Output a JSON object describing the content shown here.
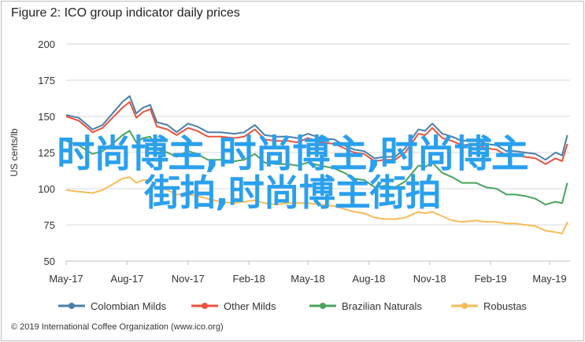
{
  "title": "Figure 2: ICO group indicator daily prices",
  "footer": "© 2019 International Coffee Organization (www.ico.org)",
  "overlay": {
    "line1": "时尚博主,时尚博主,时尚博主",
    "line2": "街拍,时尚博主街拍"
  },
  "chart_data": {
    "type": "line",
    "ylabel": "US cents/lb",
    "ylim": [
      50,
      200
    ],
    "yticks": [
      50,
      75,
      100,
      125,
      150,
      175,
      200
    ],
    "xlim": [
      "2017-05-01",
      "2019-06-01"
    ],
    "xticks": [
      {
        "date": "2017-05-01",
        "label": "May-17"
      },
      {
        "date": "2017-08-01",
        "label": "Aug-17"
      },
      {
        "date": "2017-11-01",
        "label": "Nov-17"
      },
      {
        "date": "2018-02-01",
        "label": "Feb-18"
      },
      {
        "date": "2018-05-01",
        "label": "May-18"
      },
      {
        "date": "2018-08-01",
        "label": "Aug-18"
      },
      {
        "date": "2018-11-01",
        "label": "Nov-18"
      },
      {
        "date": "2019-02-01",
        "label": "Feb-19"
      },
      {
        "date": "2019-05-01",
        "label": "May-19"
      }
    ],
    "grid": "horizontal",
    "legend_position": "bottom",
    "series": [
      {
        "name": "Colombian Milds",
        "color": "#4a7fa8",
        "points": [
          [
            "2017-05-01",
            151
          ],
          [
            "2017-05-20",
            149
          ],
          [
            "2017-06-10",
            141
          ],
          [
            "2017-06-25",
            144
          ],
          [
            "2017-07-10",
            152
          ],
          [
            "2017-07-25",
            160
          ],
          [
            "2017-08-05",
            164
          ],
          [
            "2017-08-15",
            152
          ],
          [
            "2017-08-25",
            156
          ],
          [
            "2017-09-05",
            158
          ],
          [
            "2017-09-15",
            146
          ],
          [
            "2017-10-01",
            144
          ],
          [
            "2017-10-15",
            139
          ],
          [
            "2017-11-01",
            145
          ],
          [
            "2017-11-15",
            143
          ],
          [
            "2017-12-01",
            139
          ],
          [
            "2017-12-20",
            139
          ],
          [
            "2018-01-10",
            138
          ],
          [
            "2018-01-25",
            139
          ],
          [
            "2018-02-10",
            144
          ],
          [
            "2018-02-25",
            137
          ],
          [
            "2018-03-15",
            136
          ],
          [
            "2018-04-01",
            136
          ],
          [
            "2018-04-15",
            135
          ],
          [
            "2018-05-01",
            138
          ],
          [
            "2018-05-20",
            135
          ],
          [
            "2018-06-10",
            134
          ],
          [
            "2018-06-25",
            130
          ],
          [
            "2018-07-10",
            127
          ],
          [
            "2018-07-25",
            126
          ],
          [
            "2018-08-10",
            121
          ],
          [
            "2018-08-25",
            122
          ],
          [
            "2018-09-10",
            122
          ],
          [
            "2018-09-25",
            128
          ],
          [
            "2018-10-15",
            141
          ],
          [
            "2018-10-25",
            140
          ],
          [
            "2018-11-05",
            145
          ],
          [
            "2018-11-20",
            138
          ],
          [
            "2018-12-05",
            136
          ],
          [
            "2018-12-20",
            133
          ],
          [
            "2019-01-10",
            134
          ],
          [
            "2019-01-25",
            131
          ],
          [
            "2019-02-10",
            130
          ],
          [
            "2019-02-25",
            126
          ],
          [
            "2019-03-10",
            126
          ],
          [
            "2019-03-25",
            125
          ],
          [
            "2019-04-10",
            124
          ],
          [
            "2019-04-25",
            120
          ],
          [
            "2019-05-10",
            125
          ],
          [
            "2019-05-20",
            123
          ],
          [
            "2019-05-28",
            137
          ]
        ]
      },
      {
        "name": "Other Milds",
        "color": "#e8533f",
        "points": [
          [
            "2017-05-01",
            150
          ],
          [
            "2017-05-20",
            147
          ],
          [
            "2017-06-10",
            139
          ],
          [
            "2017-06-25",
            142
          ],
          [
            "2017-07-10",
            149
          ],
          [
            "2017-07-25",
            156
          ],
          [
            "2017-08-05",
            160
          ],
          [
            "2017-08-15",
            149
          ],
          [
            "2017-08-25",
            153
          ],
          [
            "2017-09-05",
            155
          ],
          [
            "2017-09-15",
            143
          ],
          [
            "2017-10-01",
            141
          ],
          [
            "2017-10-15",
            137
          ],
          [
            "2017-11-01",
            142
          ],
          [
            "2017-11-15",
            140
          ],
          [
            "2017-12-01",
            136
          ],
          [
            "2017-12-20",
            136
          ],
          [
            "2018-01-10",
            135
          ],
          [
            "2018-01-25",
            136
          ],
          [
            "2018-02-10",
            141
          ],
          [
            "2018-02-25",
            134
          ],
          [
            "2018-03-15",
            133
          ],
          [
            "2018-04-01",
            133
          ],
          [
            "2018-04-15",
            132
          ],
          [
            "2018-05-01",
            135
          ],
          [
            "2018-05-20",
            132
          ],
          [
            "2018-06-10",
            131
          ],
          [
            "2018-06-25",
            128
          ],
          [
            "2018-07-10",
            125
          ],
          [
            "2018-07-25",
            124
          ],
          [
            "2018-08-10",
            119
          ],
          [
            "2018-08-25",
            120
          ],
          [
            "2018-09-10",
            120
          ],
          [
            "2018-09-25",
            125
          ],
          [
            "2018-10-15",
            138
          ],
          [
            "2018-10-25",
            137
          ],
          [
            "2018-11-05",
            142
          ],
          [
            "2018-11-20",
            135
          ],
          [
            "2018-12-05",
            133
          ],
          [
            "2018-12-20",
            130
          ],
          [
            "2019-01-10",
            131
          ],
          [
            "2019-01-25",
            128
          ],
          [
            "2019-02-10",
            127
          ],
          [
            "2019-02-25",
            123
          ],
          [
            "2019-03-10",
            123
          ],
          [
            "2019-03-25",
            122
          ],
          [
            "2019-04-10",
            121
          ],
          [
            "2019-04-25",
            117
          ],
          [
            "2019-05-10",
            121
          ],
          [
            "2019-05-20",
            119
          ],
          [
            "2019-05-28",
            131
          ]
        ]
      },
      {
        "name": "Brazilian Naturals",
        "color": "#4aa35c",
        "points": [
          [
            "2017-05-01",
            133
          ],
          [
            "2017-05-20",
            130
          ],
          [
            "2017-06-10",
            124
          ],
          [
            "2017-06-25",
            126
          ],
          [
            "2017-07-10",
            131
          ],
          [
            "2017-07-25",
            137
          ],
          [
            "2017-08-05",
            140
          ],
          [
            "2017-08-15",
            132
          ],
          [
            "2017-08-25",
            135
          ],
          [
            "2017-09-05",
            136
          ],
          [
            "2017-09-15",
            127
          ],
          [
            "2017-10-01",
            125
          ],
          [
            "2017-10-15",
            122
          ],
          [
            "2017-11-01",
            126
          ],
          [
            "2017-11-15",
            124
          ],
          [
            "2017-12-01",
            120
          ],
          [
            "2017-12-20",
            120
          ],
          [
            "2018-01-10",
            119
          ],
          [
            "2018-01-25",
            120
          ],
          [
            "2018-02-10",
            124
          ],
          [
            "2018-02-25",
            118
          ],
          [
            "2018-03-15",
            117
          ],
          [
            "2018-04-01",
            117
          ],
          [
            "2018-04-15",
            116
          ],
          [
            "2018-05-01",
            118
          ],
          [
            "2018-05-20",
            116
          ],
          [
            "2018-06-10",
            114
          ],
          [
            "2018-06-25",
            111
          ],
          [
            "2018-07-10",
            107
          ],
          [
            "2018-07-25",
            106
          ],
          [
            "2018-08-10",
            101
          ],
          [
            "2018-08-25",
            102
          ],
          [
            "2018-09-10",
            101
          ],
          [
            "2018-09-25",
            105
          ],
          [
            "2018-10-15",
            116
          ],
          [
            "2018-10-25",
            115
          ],
          [
            "2018-11-05",
            118
          ],
          [
            "2018-11-20",
            111
          ],
          [
            "2018-12-05",
            108
          ],
          [
            "2018-12-20",
            104
          ],
          [
            "2019-01-10",
            104
          ],
          [
            "2019-01-25",
            101
          ],
          [
            "2019-02-10",
            100
          ],
          [
            "2019-02-25",
            96
          ],
          [
            "2019-03-10",
            96
          ],
          [
            "2019-03-25",
            95
          ],
          [
            "2019-04-10",
            93
          ],
          [
            "2019-04-25",
            89
          ],
          [
            "2019-05-10",
            91
          ],
          [
            "2019-05-20",
            90
          ],
          [
            "2019-05-28",
            104
          ]
        ]
      },
      {
        "name": "Robustas",
        "color": "#f7bb5a",
        "points": [
          [
            "2017-05-01",
            99
          ],
          [
            "2017-05-20",
            98
          ],
          [
            "2017-06-10",
            97
          ],
          [
            "2017-06-25",
            99
          ],
          [
            "2017-07-10",
            103
          ],
          [
            "2017-07-25",
            107
          ],
          [
            "2017-08-05",
            108
          ],
          [
            "2017-08-15",
            104
          ],
          [
            "2017-08-25",
            106
          ],
          [
            "2017-09-05",
            106
          ],
          [
            "2017-09-15",
            101
          ],
          [
            "2017-10-01",
            99
          ],
          [
            "2017-10-15",
            96
          ],
          [
            "2017-11-01",
            96
          ],
          [
            "2017-11-15",
            95
          ],
          [
            "2017-12-01",
            93
          ],
          [
            "2017-12-20",
            91
          ],
          [
            "2018-01-10",
            90
          ],
          [
            "2018-01-25",
            91
          ],
          [
            "2018-02-10",
            92
          ],
          [
            "2018-02-25",
            90
          ],
          [
            "2018-03-15",
            89
          ],
          [
            "2018-04-01",
            90
          ],
          [
            "2018-04-15",
            90
          ],
          [
            "2018-05-01",
            90
          ],
          [
            "2018-05-20",
            89
          ],
          [
            "2018-06-10",
            88
          ],
          [
            "2018-06-25",
            86
          ],
          [
            "2018-07-10",
            84
          ],
          [
            "2018-07-25",
            83
          ],
          [
            "2018-08-10",
            80
          ],
          [
            "2018-08-25",
            79
          ],
          [
            "2018-09-10",
            79
          ],
          [
            "2018-09-25",
            80
          ],
          [
            "2018-10-15",
            84
          ],
          [
            "2018-10-25",
            83
          ],
          [
            "2018-11-05",
            84
          ],
          [
            "2018-11-20",
            81
          ],
          [
            "2018-12-05",
            78
          ],
          [
            "2018-12-20",
            77
          ],
          [
            "2019-01-10",
            78
          ],
          [
            "2019-01-25",
            77
          ],
          [
            "2019-02-10",
            77
          ],
          [
            "2019-02-25",
            76
          ],
          [
            "2019-03-10",
            76
          ],
          [
            "2019-03-25",
            75
          ],
          [
            "2019-04-10",
            74
          ],
          [
            "2019-04-25",
            71
          ],
          [
            "2019-05-10",
            70
          ],
          [
            "2019-05-20",
            69
          ],
          [
            "2019-05-28",
            77
          ]
        ]
      }
    ]
  }
}
